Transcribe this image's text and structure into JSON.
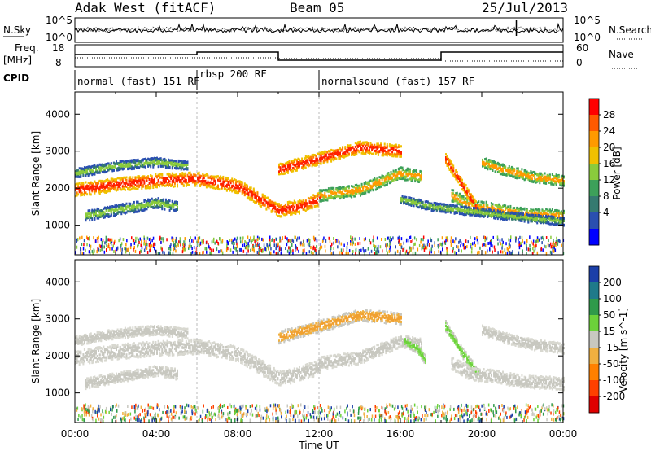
{
  "header": {
    "station": "Adak West (fitACF)",
    "beam": "Beam 05",
    "date": "25/Jul/2013"
  },
  "noise_panel": {
    "left_label": "N.Sky",
    "left_ticks": [
      "10^5",
      "10^0"
    ],
    "right_ticks": [
      "10^5",
      "10^0"
    ],
    "right_label": "N.Search"
  },
  "freq_panel": {
    "left_label_1": "Freq.",
    "left_label_2": "[MHz]",
    "left_ticks": [
      "18",
      "8"
    ],
    "right_ticks": [
      "60",
      "0"
    ],
    "right_label": "Nave"
  },
  "cpid": {
    "label": "CPID",
    "segments": [
      {
        "start_h": 0,
        "end_h": 6,
        "text": "normal (fast) 151 RF"
      },
      {
        "start_h": 6,
        "end_h": 12,
        "text": "rbsp 200 RF"
      },
      {
        "start_h": 12,
        "end_h": 24,
        "text": "normalsound (fast) 157 RF"
      }
    ]
  },
  "chart_data": [
    {
      "type": "heatmap",
      "title": "Power",
      "ylabel": "Slant Range [km]",
      "ylim": [
        200,
        4600
      ],
      "yticks": [
        "1000",
        "2000",
        "3000",
        "4000"
      ],
      "colorbar": {
        "label": "Power [dB]",
        "ticks": [
          "28",
          "24",
          "20",
          "16",
          "12",
          "8",
          "4"
        ],
        "colors": [
          "#ff0000",
          "#ff5a00",
          "#ff9a00",
          "#f0c000",
          "#8acb3c",
          "#3da05a",
          "#357a70",
          "#2a4fb0",
          "#0000ff"
        ]
      },
      "bands": [
        {
          "t": [
            0,
            2,
            4,
            6,
            8,
            10,
            11,
            12
          ],
          "r": [
            1950,
            2100,
            2200,
            2250,
            2050,
            1400,
            1500,
            1700
          ],
          "w": 180,
          "level": "high"
        },
        {
          "t": [
            0,
            2,
            4,
            5.5
          ],
          "r": [
            2400,
            2600,
            2700,
            2600
          ],
          "w": 120,
          "level": "low"
        },
        {
          "t": [
            0.5,
            2,
            4,
            5
          ],
          "r": [
            1250,
            1400,
            1600,
            1500
          ],
          "w": 140,
          "level": "low"
        },
        {
          "t": [
            12,
            14,
            16,
            17
          ],
          "r": [
            1800,
            1950,
            2400,
            2300
          ],
          "w": 160,
          "level": "mid"
        },
        {
          "t": [
            10,
            12,
            14,
            16
          ],
          "r": [
            2500,
            2800,
            3100,
            3000
          ],
          "w": 160,
          "level": "high"
        },
        {
          "t": [
            18.5,
            19.5,
            20.5,
            22,
            24
          ],
          "r": [
            1800,
            1500,
            1450,
            1300,
            1250
          ],
          "w": 160,
          "level": "mid"
        },
        {
          "t": [
            18.2,
            19,
            19.8
          ],
          "r": [
            2800,
            2100,
            1400
          ],
          "w": 140,
          "level": "high"
        },
        {
          "t": [
            20,
            21,
            22.5,
            24
          ],
          "r": [
            2700,
            2500,
            2300,
            2200
          ],
          "w": 140,
          "level": "mid"
        },
        {
          "t": [
            16,
            17.5,
            19,
            22,
            24
          ],
          "r": [
            1700,
            1500,
            1400,
            1200,
            1100
          ],
          "w": 110,
          "level": "low"
        }
      ]
    },
    {
      "type": "heatmap",
      "title": "Velocity",
      "ylabel": "Slant Range [km]",
      "ylim": [
        200,
        4600
      ],
      "yticks": [
        "1000",
        "2000",
        "3000",
        "4000"
      ],
      "colorbar": {
        "label": "Velocity [m s^-1]",
        "ticks": [
          "200",
          "100",
          "50",
          "15",
          "-15",
          "-50",
          "-100",
          "-200"
        ],
        "colors": [
          "#1b3fa8",
          "#1f7a8a",
          "#2f9a4a",
          "#6cd23a",
          "#c8c8c0",
          "#f0b040",
          "#ff8000",
          "#ff4000",
          "#e00000"
        ]
      },
      "bands": [
        {
          "t": [
            0,
            2,
            4,
            6,
            8,
            10,
            11,
            12
          ],
          "r": [
            1950,
            2100,
            2200,
            2250,
            2050,
            1400,
            1500,
            1700
          ],
          "w": 200,
          "level": "gray"
        },
        {
          "t": [
            0,
            2,
            4,
            5.5
          ],
          "r": [
            2400,
            2600,
            2700,
            2600
          ],
          "w": 130,
          "level": "gray"
        },
        {
          "t": [
            0.5,
            2,
            4,
            5
          ],
          "r": [
            1250,
            1400,
            1600,
            1500
          ],
          "w": 140,
          "level": "gray"
        },
        {
          "t": [
            12,
            14,
            16,
            17
          ],
          "r": [
            1800,
            1950,
            2400,
            2300
          ],
          "w": 170,
          "level": "gray"
        },
        {
          "t": [
            10,
            12,
            14,
            16
          ],
          "r": [
            2500,
            2800,
            3100,
            3000
          ],
          "w": 160,
          "level": "orange"
        },
        {
          "t": [
            16.2,
            16.8,
            17.2
          ],
          "r": [
            2400,
            2200,
            1900
          ],
          "w": 130,
          "level": "green"
        },
        {
          "t": [
            18.2,
            19,
            19.8
          ],
          "r": [
            2800,
            2100,
            1500
          ],
          "w": 140,
          "level": "green"
        },
        {
          "t": [
            18.5,
            19.5,
            20.5,
            22,
            24
          ],
          "r": [
            1800,
            1500,
            1450,
            1300,
            1250
          ],
          "w": 170,
          "level": "gray"
        },
        {
          "t": [
            20,
            21,
            22.5,
            24
          ],
          "r": [
            2700,
            2500,
            2300,
            2200
          ],
          "w": 140,
          "level": "gray"
        }
      ]
    }
  ],
  "xaxis": {
    "label": "Time UT",
    "ticks": [
      "00:00",
      "04:00",
      "08:00",
      "12:00",
      "16:00",
      "20:00",
      "00:00"
    ]
  }
}
